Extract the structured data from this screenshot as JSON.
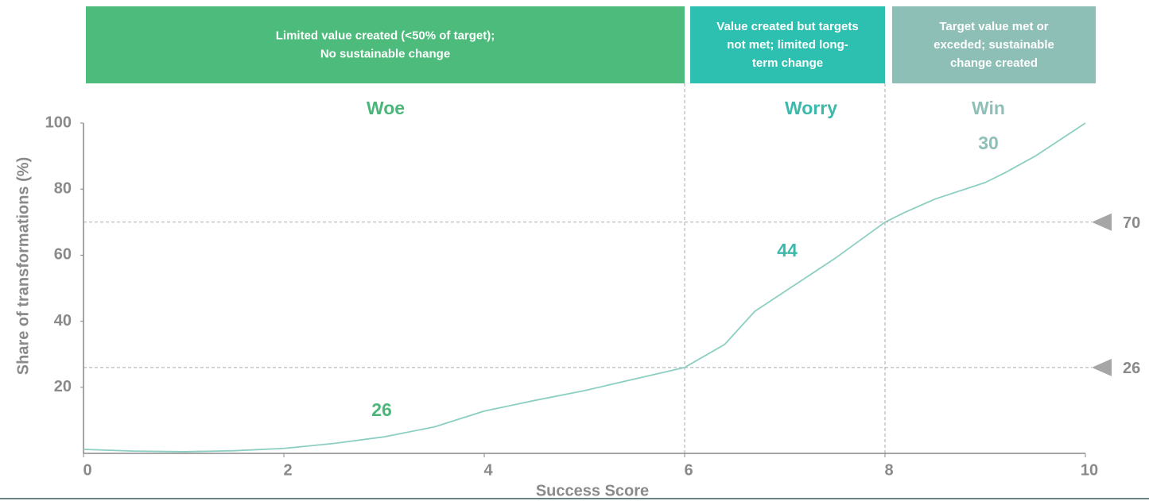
{
  "chart_data": {
    "type": "line",
    "x_label": "Success Score",
    "y_label": "Share of transformations (%)",
    "x": [
      0,
      0.5,
      1,
      1.5,
      2,
      2.5,
      3,
      3.5,
      4,
      4.5,
      5,
      5.5,
      6,
      6.4,
      6.7,
      7,
      7.5,
      8,
      8.2,
      8.5,
      9,
      9.2,
      9.5,
      10
    ],
    "series": [
      {
        "name": "Share of transformations",
        "color": "#8ccfc2",
        "values": [
          1.2,
          0.7,
          0.5,
          0.8,
          1.5,
          3,
          5,
          8,
          12.8,
          16,
          19,
          22.5,
          26,
          33,
          43,
          49,
          59,
          70,
          73,
          77,
          82,
          85,
          90,
          100
        ]
      }
    ],
    "xlim": [
      0,
      10
    ],
    "xticks": [
      0,
      2,
      4,
      6,
      8,
      10
    ],
    "ylim": [
      0,
      100
    ],
    "yticks": [
      20,
      40,
      60,
      80,
      100
    ],
    "hlines": [
      70,
      26
    ],
    "vlines": [
      6,
      8
    ],
    "segments": [
      {
        "header": [
          "Limited value created (<50% of target);",
          "No sustainable change"
        ],
        "name": "Woe",
        "share": 26,
        "color": "#4dbb7b",
        "text_color": "#4cb67a"
      },
      {
        "header": [
          "Value created but targets",
          "not met; limited long-",
          "term change"
        ],
        "name": "Worry",
        "share": 44,
        "color": "#2dbfb0",
        "text_color": "#3cb9ab"
      },
      {
        "header": [
          "Target value met or",
          "exceded; sustainable",
          "change created"
        ],
        "name": "Win",
        "share": 30,
        "color": "#8dbfb6",
        "text_color": "#8fc0b8"
      }
    ]
  }
}
